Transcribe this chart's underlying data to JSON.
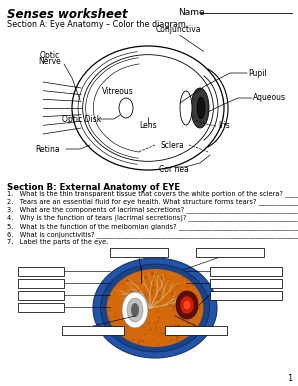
{
  "title": "Senses worksheet",
  "name_label": "Name",
  "section_a": "Section A: Eye Anatomy – Color the diagram.",
  "section_b_title": "Section B: External Anatomy of EYE",
  "questions": [
    "1.   What is the thin transparent tissue that covers the white portion of the sclera? ___________________",
    "2.   Tears are an essential fluid for eye health. What structure forms tears? ___________________",
    "3.   What are the components of lacrimal secretions? ____________________________________________",
    "4.   Why is the function of tears (lacrimal secretions)? _________________________________________",
    "5.   What is the function of the meibomian glands? _____________________________________________",
    "6.   What is conjunctivitis? __________________________________________________________________",
    "7.   Label the parts of the eye."
  ],
  "bg_color": "#ffffff",
  "text_color": "#000000"
}
